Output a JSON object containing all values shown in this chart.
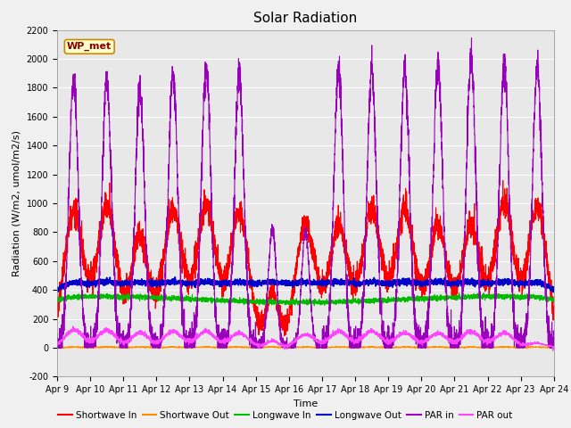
{
  "title": "Solar Radiation",
  "ylabel": "Radiation (W/m2, umol/m2/s)",
  "xlabel": "Time",
  "ylim": [
    -200,
    2200
  ],
  "yticks": [
    -200,
    0,
    200,
    400,
    600,
    800,
    1000,
    1200,
    1400,
    1600,
    1800,
    2000,
    2200
  ],
  "x_tick_labels": [
    "Apr 9",
    "Apr 10",
    "Apr 11",
    "Apr 12",
    "Apr 13",
    "Apr 14",
    "Apr 15",
    "Apr 16",
    "Apr 17",
    "Apr 18",
    "Apr 19",
    "Apr 20",
    "Apr 21",
    "Apr 22",
    "Apr 23",
    "Apr 24"
  ],
  "num_days": 15,
  "legend_labels": [
    "Shortwave In",
    "Shortwave Out",
    "Longwave In",
    "Longwave Out",
    "PAR in",
    "PAR out"
  ],
  "legend_colors": [
    "#ff0000",
    "#ff8c00",
    "#00bb00",
    "#0000cc",
    "#9900bb",
    "#ff44ff"
  ],
  "line_widths": [
    0.8,
    0.8,
    0.8,
    1.2,
    0.8,
    0.8
  ],
  "station_label": "WP_met",
  "background_color": "#e8e8e8",
  "plot_bg_color": "#f0f0f0",
  "title_fontsize": 11,
  "axis_fontsize": 8,
  "tick_fontsize": 7
}
